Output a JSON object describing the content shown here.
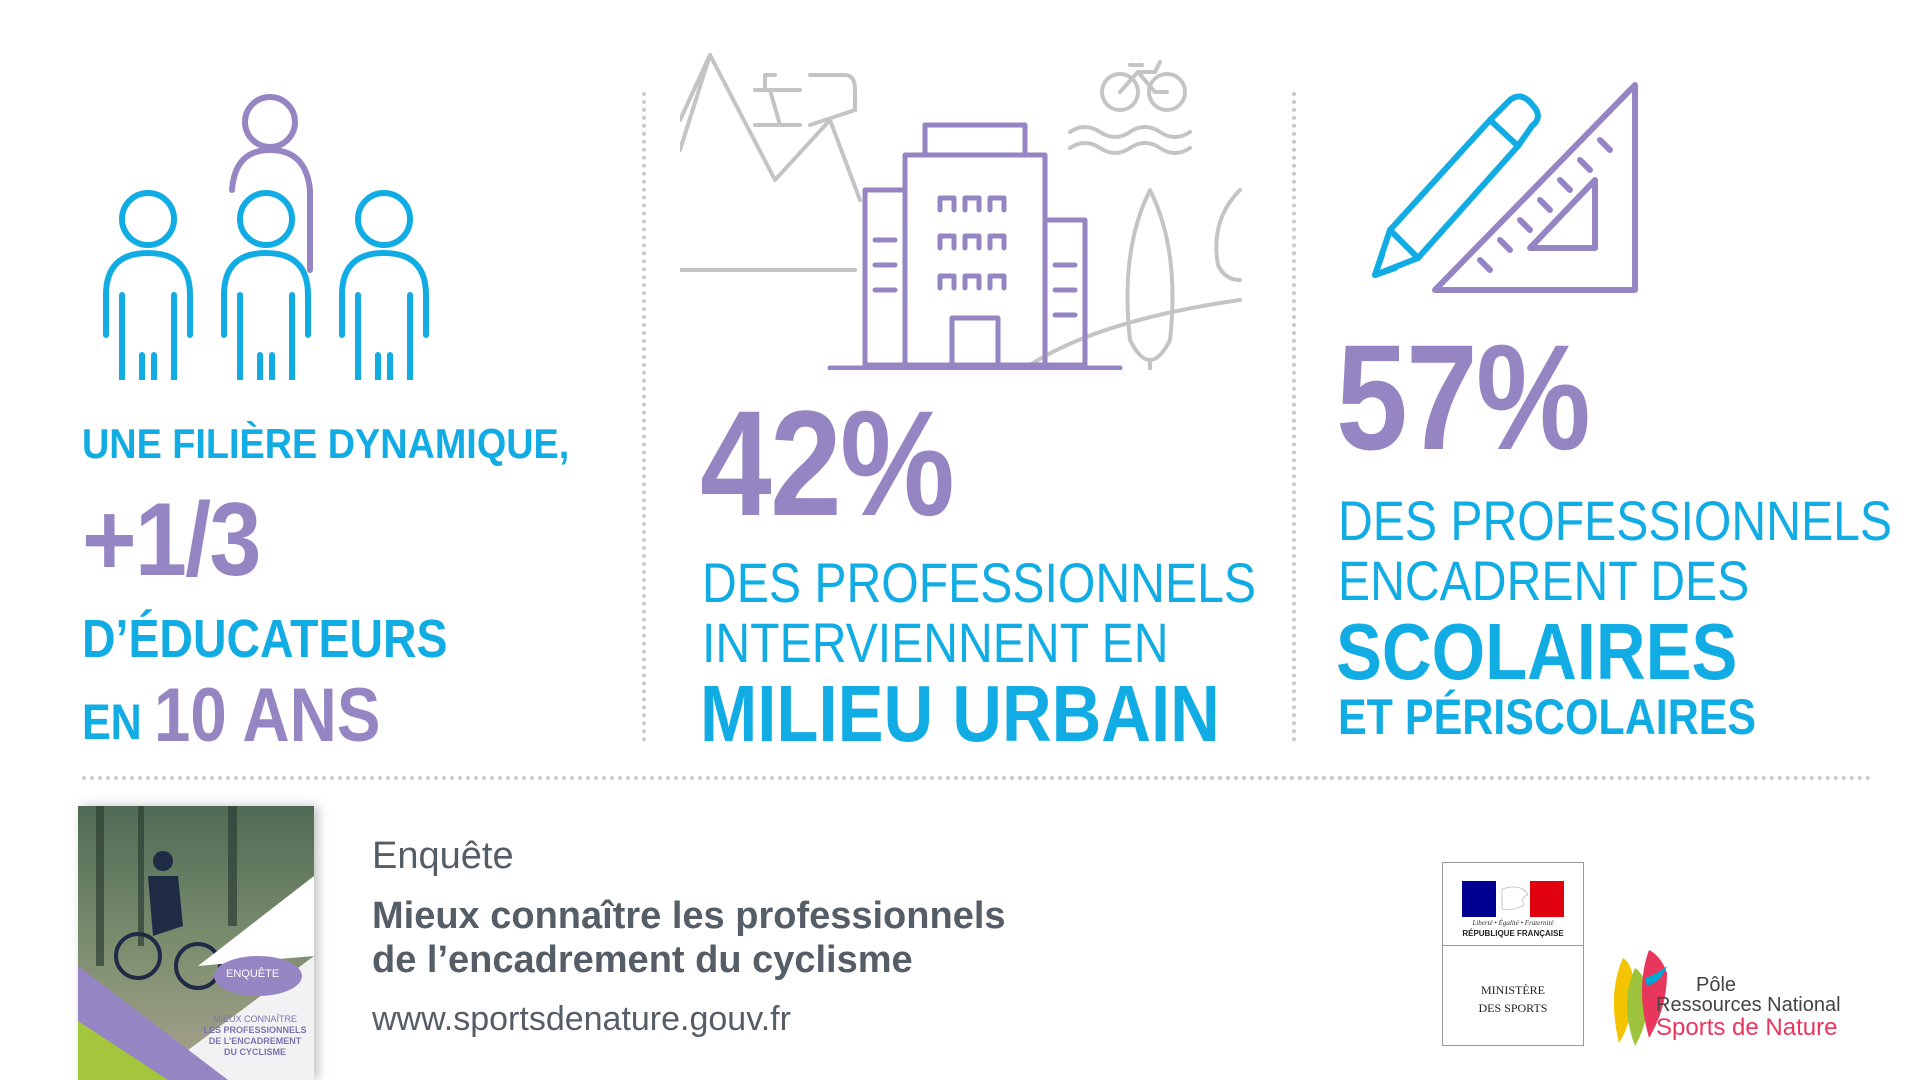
{
  "col1": {
    "line1": "UNE FILIÈRE DYNAMIQUE,",
    "stat": "+1/3",
    "line3": "D’ÉDUCATEURS",
    "line4_prefix": "EN",
    "line4_big": "10 ANS"
  },
  "col2": {
    "stat": "42%",
    "line1": "DES PROFESSIONNELS",
    "line2": "INTERVIENNENT EN",
    "line3": "MILIEU URBAIN"
  },
  "col3": {
    "stat": "57%",
    "line1": "DES PROFESSIONNELS",
    "line2": "ENCADRENT DES",
    "line3": "SCOLAIRES",
    "line4": "ET PÉRISCOLAIRES"
  },
  "footer": {
    "kicker": "Enquête",
    "title_line1": "Mieux connaître les professionnels",
    "title_line2": "de l’encadrement du cyclisme",
    "url": "www.sportsdenature.gouv.fr"
  },
  "book_cover": {
    "badge": "ENQUÊTE",
    "line1": "MIEUX CONNAÎTRE",
    "line2": "LES PROFESSIONNELS",
    "line3": "DE L’ENCADREMENT",
    "line4": "DU CYCLISME"
  },
  "gov_logo": {
    "motto": "Liberté • Égalité • Fraternité",
    "republic": "RÉPUBLIQUE FRANÇAISE",
    "ministry_line1": "MINISTÈRE",
    "ministry_line2": "DES SPORTS"
  },
  "pole_logo": {
    "line1": "Pôle",
    "line2": "Ressources National",
    "line3": "Sports de Nature"
  },
  "colors": {
    "cyan": "#12ace4",
    "purple": "#9586c3",
    "gray_text": "#555d66",
    "red": "#e1000f",
    "blue": "#000091",
    "pink": "#e8365d"
  },
  "icons": [
    "people-icon",
    "city-nature-icon",
    "pencil-set-square-icon"
  ]
}
